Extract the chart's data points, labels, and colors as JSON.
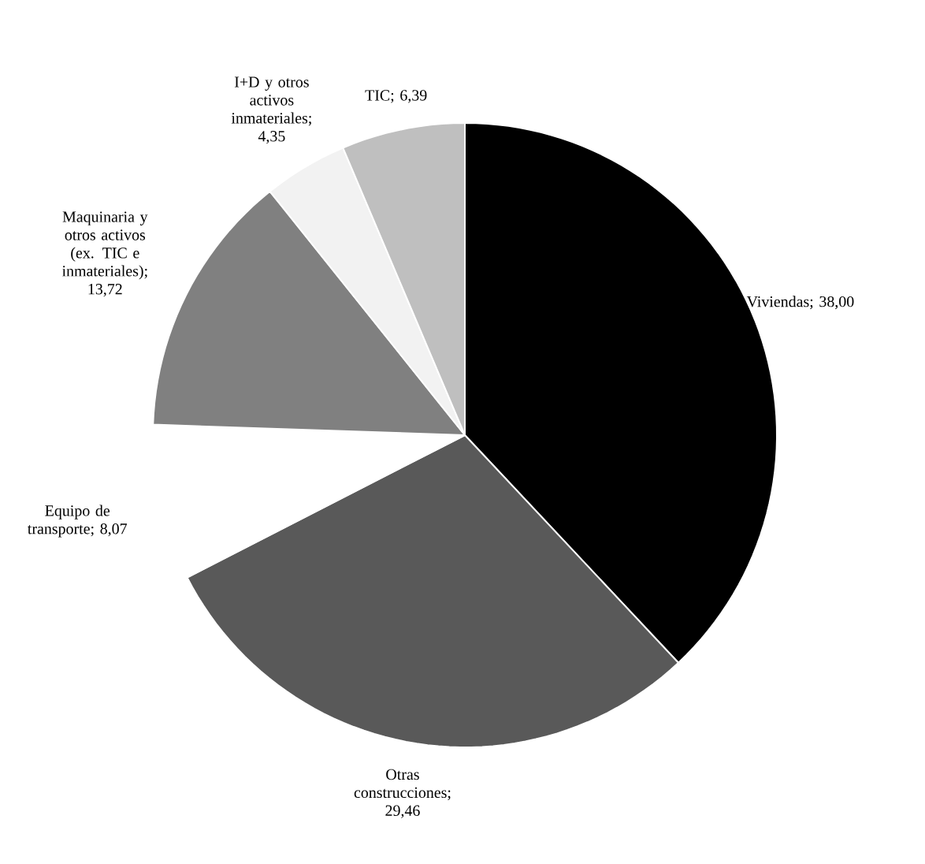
{
  "chart_data": {
    "type": "pie",
    "categories": [
      "Viviendas; 38,00",
      "Otras construcciones; 29,46",
      "Equipo de transporte; 8,07",
      "Maquinaria y otros activos (ex. TIC e inmateriales); 13,72",
      "I+D y otros activos inmateriales; 4,35",
      "TIC; 6,39"
    ],
    "values": [
      38.0,
      29.46,
      8.07,
      13.72,
      4.35,
      6.39
    ],
    "colors": [
      "#000000",
      "#595959",
      "#ffffff",
      "#808080",
      "#f2f2f2",
      "#bfbfbf"
    ]
  }
}
